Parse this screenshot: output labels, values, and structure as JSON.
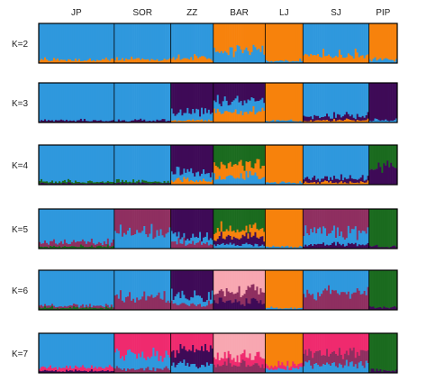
{
  "chart_data": {
    "type": "bar",
    "subtype": "stacked-admixture",
    "populations": [
      {
        "label": "JP",
        "weight": 8
      },
      {
        "label": "SOR",
        "weight": 6
      },
      {
        "label": "ZZ",
        "weight": 4.5
      },
      {
        "label": "BAR",
        "weight": 5.5
      },
      {
        "label": "LJ",
        "weight": 4
      },
      {
        "label": "SJ",
        "weight": 7
      },
      {
        "label": "PIP",
        "weight": 3
      }
    ],
    "k_runs": [
      {
        "label": "K=2",
        "assignments": [
          [
            [
              "blue",
              0.92
            ],
            [
              "orange",
              0.08
            ]
          ],
          [
            [
              "blue",
              0.92
            ],
            [
              "orange",
              0.08
            ]
          ],
          [
            [
              "blue",
              0.88
            ],
            [
              "orange",
              0.12
            ]
          ],
          [
            [
              "orange",
              0.7
            ],
            [
              "blue",
              0.3
            ]
          ],
          [
            [
              "orange",
              0.95
            ],
            [
              "blue",
              0.05
            ]
          ],
          [
            [
              "blue",
              0.8
            ],
            [
              "orange",
              0.2
            ]
          ],
          [
            [
              "orange",
              0.92
            ],
            [
              "blue",
              0.08
            ]
          ]
        ]
      },
      {
        "label": "K=3",
        "assignments": [
          [
            [
              "blue",
              0.95
            ],
            [
              "purple",
              0.05
            ]
          ],
          [
            [
              "blue",
              0.95
            ],
            [
              "purple",
              0.05
            ]
          ],
          [
            [
              "purple",
              0.75
            ],
            [
              "blue",
              0.2
            ],
            [
              "orange",
              0.05
            ]
          ],
          [
            [
              "purple",
              0.45
            ],
            [
              "blue",
              0.3
            ],
            [
              "orange",
              0.25
            ]
          ],
          [
            [
              "orange",
              0.95
            ],
            [
              "blue",
              0.05
            ]
          ],
          [
            [
              "blue",
              0.85
            ],
            [
              "purple",
              0.1
            ],
            [
              "orange",
              0.05
            ]
          ],
          [
            [
              "purple",
              0.95
            ],
            [
              "blue",
              0.05
            ]
          ]
        ]
      },
      {
        "label": "K=4",
        "assignments": [
          [
            [
              "blue",
              0.93
            ],
            [
              "green",
              0.04
            ],
            [
              "purple",
              0.03
            ]
          ],
          [
            [
              "blue",
              0.93
            ],
            [
              "green",
              0.04
            ],
            [
              "purple",
              0.03
            ]
          ],
          [
            [
              "purple",
              0.7
            ],
            [
              "blue",
              0.2
            ],
            [
              "orange",
              0.1
            ]
          ],
          [
            [
              "green",
              0.5
            ],
            [
              "orange",
              0.3
            ],
            [
              "blue",
              0.2
            ]
          ],
          [
            [
              "orange",
              0.95
            ],
            [
              "blue",
              0.05
            ]
          ],
          [
            [
              "blue",
              0.85
            ],
            [
              "purple",
              0.1
            ],
            [
              "orange",
              0.05
            ]
          ],
          [
            [
              "green",
              0.55
            ],
            [
              "purple",
              0.45
            ]
          ]
        ]
      },
      {
        "label": "K=5",
        "assignments": [
          [
            [
              "blue",
              0.85
            ],
            [
              "maroon",
              0.1
            ],
            [
              "green",
              0.05
            ]
          ],
          [
            [
              "maroon",
              0.6
            ],
            [
              "blue",
              0.4
            ]
          ],
          [
            [
              "purple",
              0.7
            ],
            [
              "blue",
              0.15
            ],
            [
              "maroon",
              0.15
            ]
          ],
          [
            [
              "green",
              0.5
            ],
            [
              "orange",
              0.2
            ],
            [
              "purple",
              0.2
            ],
            [
              "blue",
              0.1
            ]
          ],
          [
            [
              "orange",
              0.95
            ],
            [
              "blue",
              0.05
            ]
          ],
          [
            [
              "maroon",
              0.6
            ],
            [
              "blue",
              0.3
            ],
            [
              "purple",
              0.1
            ]
          ],
          [
            [
              "green",
              0.95
            ],
            [
              "purple",
              0.05
            ]
          ]
        ]
      },
      {
        "label": "K=6",
        "assignments": [
          [
            [
              "blue",
              0.9
            ],
            [
              "maroon",
              0.05
            ],
            [
              "green",
              0.05
            ]
          ],
          [
            [
              "blue",
              0.7
            ],
            [
              "maroon",
              0.3
            ]
          ],
          [
            [
              "purple",
              0.65
            ],
            [
              "blue",
              0.2
            ],
            [
              "maroon",
              0.15
            ]
          ],
          [
            [
              "pink",
              0.55
            ],
            [
              "maroon",
              0.25
            ],
            [
              "purple",
              0.2
            ]
          ],
          [
            [
              "orange",
              0.95
            ],
            [
              "blue",
              0.05
            ]
          ],
          [
            [
              "blue",
              0.6
            ],
            [
              "maroon",
              0.4
            ]
          ],
          [
            [
              "green",
              0.95
            ],
            [
              "purple",
              0.05
            ]
          ]
        ]
      },
      {
        "label": "K=7",
        "assignments": [
          [
            [
              "blue",
              0.85
            ],
            [
              "magenta",
              0.1
            ],
            [
              "purple",
              0.05
            ]
          ],
          [
            [
              "magenta",
              0.55
            ],
            [
              "blue",
              0.35
            ],
            [
              "maroon",
              0.1
            ]
          ],
          [
            [
              "magenta",
              0.4
            ],
            [
              "purple",
              0.4
            ],
            [
              "blue",
              0.2
            ]
          ],
          [
            [
              "pink",
              0.6
            ],
            [
              "magenta",
              0.2
            ],
            [
              "maroon",
              0.2
            ]
          ],
          [
            [
              "orange",
              0.8
            ],
            [
              "magenta",
              0.1
            ],
            [
              "blue",
              0.1
            ]
          ],
          [
            [
              "magenta",
              0.5
            ],
            [
              "maroon",
              0.3
            ],
            [
              "blue",
              0.2
            ]
          ],
          [
            [
              "green",
              0.95
            ],
            [
              "purple",
              0.05
            ]
          ]
        ]
      }
    ],
    "colors": {
      "blue": "#2f98dd",
      "orange": "#f7820c",
      "purple": "#3e0a57",
      "green": "#1b6b1f",
      "maroon": "#8f2f60",
      "pink": "#f8a7b1",
      "magenta": "#ef2a6e"
    },
    "grid": false,
    "legend": "none"
  }
}
